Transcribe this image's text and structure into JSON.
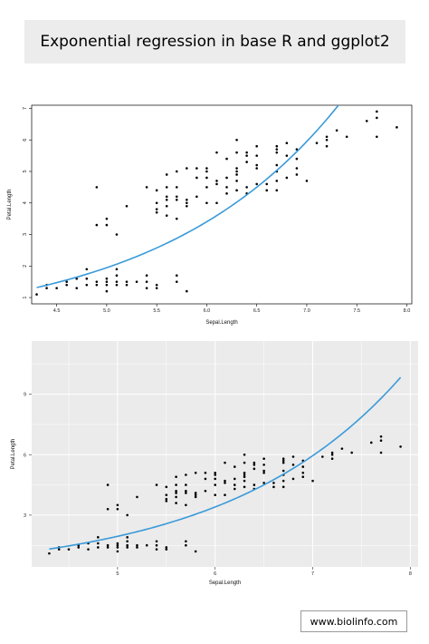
{
  "title": "Exponential regression in base R and ggplot2",
  "footer": "www.biolinfo.com",
  "colors": {
    "fit_line": "#3a9ad9",
    "points": "#000000",
    "gg_panel": "#ebebeb",
    "gg_grid": "#ffffff"
  },
  "chart_data": [
    {
      "type": "scatter",
      "style": "base-r",
      "xlabel": "Sepal.Length",
      "ylabel": "Petal.Length",
      "xlim": [
        4.25,
        8.05
      ],
      "ylim": [
        0.8,
        7.1
      ],
      "x_ticks": [
        4.5,
        5.0,
        5.5,
        6.0,
        6.5,
        7.0,
        7.5,
        8.0
      ],
      "x_tick_labels": [
        "4.5",
        "5.0",
        "5.5",
        "6.0",
        "6.5",
        "7.0",
        "7.5",
        "8.0"
      ],
      "y_ticks": [
        1,
        2,
        3,
        4,
        5,
        6,
        7
      ],
      "y_tick_labels": [
        "1",
        "2",
        "3",
        "4",
        "5",
        "6",
        "7"
      ],
      "fit": {
        "model": "exponential",
        "a": 0.1193,
        "b": 0.5585
      },
      "points": [
        [
          4.3,
          1.1
        ],
        [
          4.4,
          1.3
        ],
        [
          4.4,
          1.4
        ],
        [
          4.5,
          1.3
        ],
        [
          4.6,
          1.4
        ],
        [
          4.6,
          1.5
        ],
        [
          4.7,
          1.3
        ],
        [
          4.7,
          1.6
        ],
        [
          4.8,
          1.4
        ],
        [
          4.8,
          1.6
        ],
        [
          4.8,
          1.9
        ],
        [
          4.9,
          1.4
        ],
        [
          4.9,
          1.5
        ],
        [
          4.9,
          3.3
        ],
        [
          4.9,
          4.5
        ],
        [
          5.0,
          1.2
        ],
        [
          5.0,
          1.4
        ],
        [
          5.0,
          1.5
        ],
        [
          5.0,
          1.6
        ],
        [
          5.0,
          3.3
        ],
        [
          5.0,
          3.5
        ],
        [
          5.1,
          1.4
        ],
        [
          5.1,
          1.5
        ],
        [
          5.1,
          1.7
        ],
        [
          5.1,
          1.9
        ],
        [
          5.1,
          3.0
        ],
        [
          5.2,
          1.4
        ],
        [
          5.2,
          1.5
        ],
        [
          5.2,
          3.9
        ],
        [
          5.3,
          1.5
        ],
        [
          5.4,
          1.3
        ],
        [
          5.4,
          1.5
        ],
        [
          5.4,
          1.7
        ],
        [
          5.4,
          4.5
        ],
        [
          5.5,
          1.3
        ],
        [
          5.5,
          1.4
        ],
        [
          5.5,
          3.7
        ],
        [
          5.5,
          3.8
        ],
        [
          5.5,
          4.0
        ],
        [
          5.5,
          4.4
        ],
        [
          5.6,
          3.6
        ],
        [
          5.6,
          3.9
        ],
        [
          5.6,
          4.1
        ],
        [
          5.6,
          4.2
        ],
        [
          5.6,
          4.5
        ],
        [
          5.6,
          4.9
        ],
        [
          5.7,
          1.5
        ],
        [
          5.7,
          1.7
        ],
        [
          5.7,
          3.5
        ],
        [
          5.7,
          4.1
        ],
        [
          5.7,
          4.2
        ],
        [
          5.7,
          4.5
        ],
        [
          5.7,
          5.0
        ],
        [
          5.8,
          1.2
        ],
        [
          5.8,
          3.9
        ],
        [
          5.8,
          4.0
        ],
        [
          5.8,
          4.1
        ],
        [
          5.8,
          5.1
        ],
        [
          5.9,
          4.2
        ],
        [
          5.9,
          4.8
        ],
        [
          5.9,
          5.1
        ],
        [
          6.0,
          4.0
        ],
        [
          6.0,
          4.5
        ],
        [
          6.0,
          4.8
        ],
        [
          6.0,
          5.0
        ],
        [
          6.0,
          5.1
        ],
        [
          6.1,
          4.0
        ],
        [
          6.1,
          4.6
        ],
        [
          6.1,
          4.7
        ],
        [
          6.1,
          5.6
        ],
        [
          6.2,
          4.3
        ],
        [
          6.2,
          4.5
        ],
        [
          6.2,
          4.8
        ],
        [
          6.2,
          5.4
        ],
        [
          6.3,
          4.4
        ],
        [
          6.3,
          4.7
        ],
        [
          6.3,
          4.9
        ],
        [
          6.3,
          5.0
        ],
        [
          6.3,
          5.1
        ],
        [
          6.3,
          5.6
        ],
        [
          6.3,
          6.0
        ],
        [
          6.4,
          4.3
        ],
        [
          6.4,
          4.5
        ],
        [
          6.4,
          5.3
        ],
        [
          6.4,
          5.5
        ],
        [
          6.4,
          5.6
        ],
        [
          6.5,
          4.6
        ],
        [
          6.5,
          5.1
        ],
        [
          6.5,
          5.2
        ],
        [
          6.5,
          5.5
        ],
        [
          6.5,
          5.8
        ],
        [
          6.6,
          4.4
        ],
        [
          6.6,
          4.6
        ],
        [
          6.7,
          4.4
        ],
        [
          6.7,
          4.7
        ],
        [
          6.7,
          5.0
        ],
        [
          6.7,
          5.2
        ],
        [
          6.7,
          5.6
        ],
        [
          6.7,
          5.7
        ],
        [
          6.7,
          5.8
        ],
        [
          6.8,
          4.8
        ],
        [
          6.8,
          5.5
        ],
        [
          6.8,
          5.9
        ],
        [
          6.9,
          4.9
        ],
        [
          6.9,
          5.1
        ],
        [
          6.9,
          5.4
        ],
        [
          6.9,
          5.7
        ],
        [
          7.0,
          4.7
        ],
        [
          7.1,
          5.9
        ],
        [
          7.2,
          5.8
        ],
        [
          7.2,
          6.0
        ],
        [
          7.2,
          6.1
        ],
        [
          7.3,
          6.3
        ],
        [
          7.4,
          6.1
        ],
        [
          7.6,
          6.6
        ],
        [
          7.7,
          6.1
        ],
        [
          7.7,
          6.7
        ],
        [
          7.7,
          6.9
        ],
        [
          7.9,
          6.4
        ]
      ]
    },
    {
      "type": "scatter",
      "style": "ggplot2",
      "xlabel": "Sepal.Length",
      "ylabel": "Petal.Length",
      "xlim": [
        4.12,
        8.08
      ],
      "ylim": [
        0.43,
        11.64
      ],
      "x_ticks": [
        5,
        6,
        7,
        8
      ],
      "x_tick_labels": [
        "5",
        "6",
        "7",
        "8"
      ],
      "y_ticks": [
        3,
        6,
        9
      ],
      "y_tick_labels": [
        "3",
        "6",
        "9"
      ],
      "fit": {
        "model": "exponential",
        "a": 0.1193,
        "b": 0.5585
      },
      "points": "same"
    }
  ]
}
